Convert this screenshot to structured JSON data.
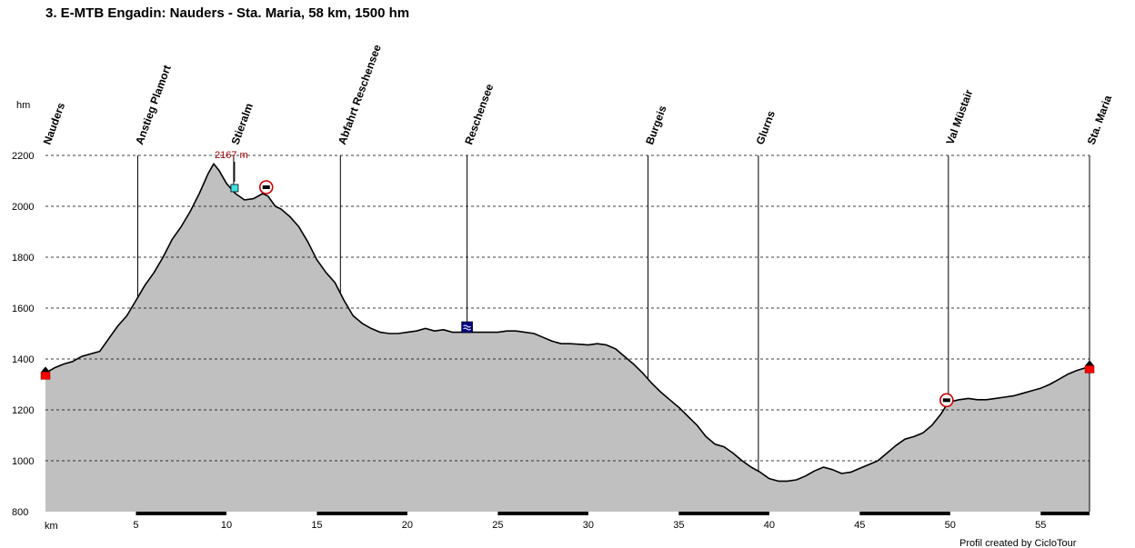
{
  "chart_data": {
    "type": "area",
    "title": "3. E-MTB Engadin: Nauders - Sta. Maria, 58 km, 1500 hm",
    "ylabel": "hm",
    "xlabel": "km",
    "xlim": [
      0,
      57.7
    ],
    "ylim": [
      800,
      2200
    ],
    "x_ticks": [
      5,
      10,
      15,
      20,
      25,
      30,
      35,
      40,
      45,
      50,
      55
    ],
    "y_ticks": [
      800,
      1000,
      1200,
      1400,
      1600,
      1800,
      2000,
      2200
    ],
    "grid": true,
    "fill_color": "#c0c0c0",
    "line_color": "#000000",
    "peak_label": "2167 m",
    "credit": "Profil created by CicloTour",
    "waypoints": [
      {
        "name": "Nauders",
        "km": 0
      },
      {
        "name": "Anstieg Plamort",
        "km": 5.1
      },
      {
        "name": "Stieralm",
        "km": 10.4
      },
      {
        "name": "Abfahrt Reschensee",
        "km": 16.3
      },
      {
        "name": "Reschensee",
        "km": 23.3
      },
      {
        "name": "Burgeis",
        "km": 33.3
      },
      {
        "name": "Glurns",
        "km": 39.4
      },
      {
        "name": "Val Müstair",
        "km": 49.9
      },
      {
        "name": "Sta. Maria",
        "km": 57.7
      }
    ],
    "points": [
      [
        0,
        1345
      ],
      [
        0.5,
        1365
      ],
      [
        1,
        1380
      ],
      [
        1.5,
        1390
      ],
      [
        2,
        1410
      ],
      [
        2.5,
        1420
      ],
      [
        3,
        1430
      ],
      [
        3.5,
        1480
      ],
      [
        4,
        1530
      ],
      [
        4.5,
        1570
      ],
      [
        5,
        1630
      ],
      [
        5.5,
        1690
      ],
      [
        6,
        1740
      ],
      [
        6.5,
        1800
      ],
      [
        7,
        1870
      ],
      [
        7.5,
        1920
      ],
      [
        8,
        1980
      ],
      [
        8.5,
        2050
      ],
      [
        9,
        2130
      ],
      [
        9.3,
        2167
      ],
      [
        9.6,
        2140
      ],
      [
        10,
        2090
      ],
      [
        10.5,
        2050
      ],
      [
        11,
        2025
      ],
      [
        11.5,
        2030
      ],
      [
        12,
        2050
      ],
      [
        12.3,
        2040
      ],
      [
        12.7,
        2000
      ],
      [
        13,
        1990
      ],
      [
        13.5,
        1960
      ],
      [
        14,
        1920
      ],
      [
        14.5,
        1860
      ],
      [
        15,
        1790
      ],
      [
        15.5,
        1740
      ],
      [
        16,
        1700
      ],
      [
        16.5,
        1630
      ],
      [
        17,
        1570
      ],
      [
        17.5,
        1540
      ],
      [
        18,
        1520
      ],
      [
        18.5,
        1505
      ],
      [
        19,
        1500
      ],
      [
        19.5,
        1500
      ],
      [
        20,
        1505
      ],
      [
        20.5,
        1510
      ],
      [
        21,
        1520
      ],
      [
        21.5,
        1510
      ],
      [
        22,
        1515
      ],
      [
        22.5,
        1505
      ],
      [
        23,
        1505
      ],
      [
        23.5,
        1505
      ],
      [
        24,
        1505
      ],
      [
        24.5,
        1505
      ],
      [
        25,
        1505
      ],
      [
        25.5,
        1510
      ],
      [
        26,
        1510
      ],
      [
        26.5,
        1505
      ],
      [
        27,
        1500
      ],
      [
        27.5,
        1485
      ],
      [
        28,
        1470
      ],
      [
        28.5,
        1460
      ],
      [
        29,
        1460
      ],
      [
        29.5,
        1458
      ],
      [
        30,
        1455
      ],
      [
        30.5,
        1460
      ],
      [
        31,
        1455
      ],
      [
        31.5,
        1440
      ],
      [
        32,
        1410
      ],
      [
        32.5,
        1380
      ],
      [
        33,
        1345
      ],
      [
        33.5,
        1305
      ],
      [
        34,
        1270
      ],
      [
        34.5,
        1240
      ],
      [
        35,
        1210
      ],
      [
        35.5,
        1175
      ],
      [
        36,
        1140
      ],
      [
        36.5,
        1095
      ],
      [
        37,
        1065
      ],
      [
        37.5,
        1055
      ],
      [
        38,
        1030
      ],
      [
        38.5,
        1000
      ],
      [
        39,
        975
      ],
      [
        39.5,
        955
      ],
      [
        40,
        930
      ],
      [
        40.5,
        920
      ],
      [
        41,
        920
      ],
      [
        41.5,
        925
      ],
      [
        42,
        940
      ],
      [
        42.5,
        960
      ],
      [
        43,
        975
      ],
      [
        43.5,
        965
      ],
      [
        44,
        950
      ],
      [
        44.5,
        955
      ],
      [
        45,
        970
      ],
      [
        45.5,
        985
      ],
      [
        46,
        1000
      ],
      [
        46.5,
        1030
      ],
      [
        47,
        1060
      ],
      [
        47.5,
        1085
      ],
      [
        48,
        1095
      ],
      [
        48.5,
        1110
      ],
      [
        49,
        1140
      ],
      [
        49.5,
        1185
      ],
      [
        49.9,
        1230
      ],
      [
        50.5,
        1240
      ],
      [
        51,
        1245
      ],
      [
        51.5,
        1240
      ],
      [
        52,
        1240
      ],
      [
        52.5,
        1245
      ],
      [
        53,
        1250
      ],
      [
        53.5,
        1255
      ],
      [
        54,
        1265
      ],
      [
        54.5,
        1275
      ],
      [
        55,
        1285
      ],
      [
        55.5,
        1300
      ],
      [
        56,
        1320
      ],
      [
        56.5,
        1340
      ],
      [
        57,
        1355
      ],
      [
        57.7,
        1370
      ]
    ]
  }
}
